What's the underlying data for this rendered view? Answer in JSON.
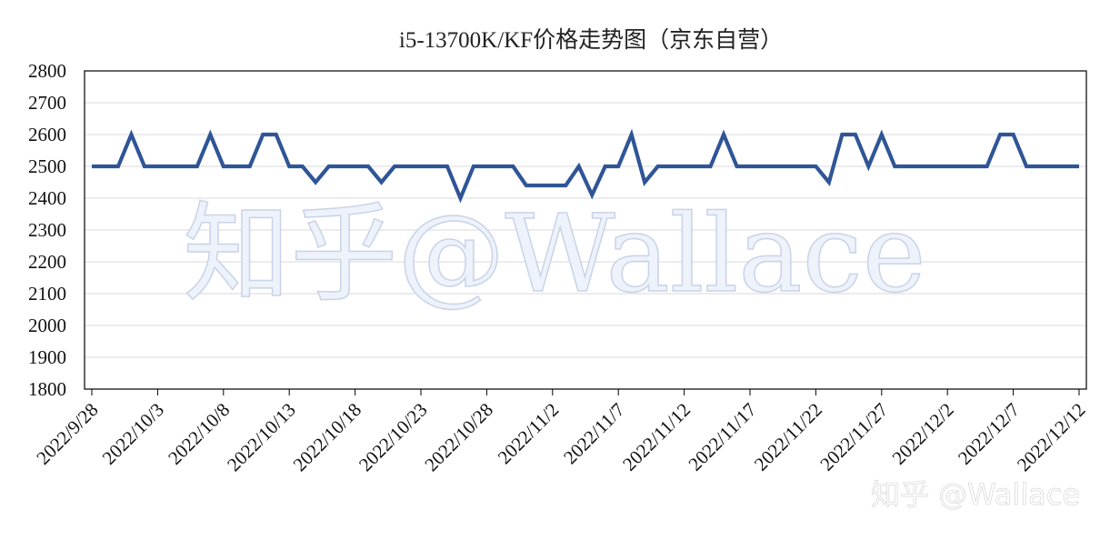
{
  "chart_data": {
    "type": "line",
    "title": "i5-13700K/KF价格走势图（京东自营）",
    "xlabel": "",
    "ylabel": "",
    "ylim": [
      1800,
      2800
    ],
    "yticks": [
      1800,
      1900,
      2000,
      2100,
      2200,
      2300,
      2400,
      2500,
      2600,
      2700,
      2800
    ],
    "grid": true,
    "legend": "none",
    "x_tick_labels": [
      "2022/9/28",
      "2022/10/3",
      "2022/10/8",
      "2022/10/13",
      "2022/10/18",
      "2022/10/23",
      "2022/10/28",
      "2022/11/2",
      "2022/11/7",
      "2022/11/12",
      "2022/11/17",
      "2022/11/22",
      "2022/11/27",
      "2022/12/2",
      "2022/12/7",
      "2022/12/12"
    ],
    "x_start": "2022/9/28",
    "x_end": "2022/12/12",
    "series": [
      {
        "color": "#2f5597",
        "values": [
          2500,
          2500,
          2500,
          2600,
          2500,
          2500,
          2500,
          2500,
          2500,
          2600,
          2500,
          2500,
          2500,
          2600,
          2600,
          2500,
          2500,
          2450,
          2500,
          2500,
          2500,
          2500,
          2450,
          2500,
          2500,
          2500,
          2500,
          2500,
          2400,
          2500,
          2500,
          2500,
          2500,
          2440,
          2440,
          2440,
          2440,
          2500,
          2410,
          2500,
          2500,
          2600,
          2450,
          2500,
          2500,
          2500,
          2500,
          2500,
          2600,
          2500,
          2500,
          2500,
          2500,
          2500,
          2500,
          2500,
          2450,
          2600,
          2600,
          2500,
          2600,
          2500,
          2500,
          2500,
          2500,
          2500,
          2500,
          2500,
          2500,
          2600,
          2600,
          2500,
          2500,
          2500,
          2500,
          2500
        ]
      }
    ]
  },
  "watermark": {
    "center_text": "知乎@Wallace",
    "corner_text": "知乎 @Wallace"
  },
  "colors": {
    "line": "#2f5597",
    "grid": "#d9d9d9",
    "axis": "#000000"
  }
}
